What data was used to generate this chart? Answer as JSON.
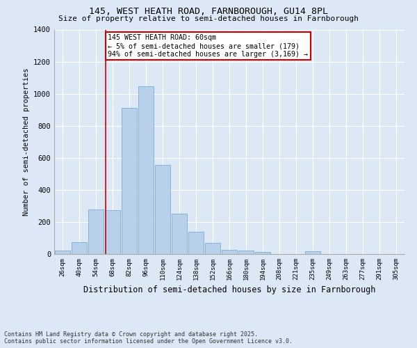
{
  "title1": "145, WEST HEATH ROAD, FARNBOROUGH, GU14 8PL",
  "title2": "Size of property relative to semi-detached houses in Farnborough",
  "xlabel": "Distribution of semi-detached houses by size in Farnborough",
  "ylabel": "Number of semi-detached properties",
  "bar_color": "#b8d0ea",
  "bar_edge_color": "#7aadd4",
  "background_color": "#dce8f5",
  "grid_color": "#ffffff",
  "categories": [
    "26sqm",
    "40sqm",
    "54sqm",
    "68sqm",
    "82sqm",
    "96sqm",
    "110sqm",
    "124sqm",
    "138sqm",
    "152sqm",
    "166sqm",
    "180sqm",
    "194sqm",
    "208sqm",
    "221sqm",
    "235sqm",
    "249sqm",
    "263sqm",
    "277sqm",
    "291sqm",
    "305sqm"
  ],
  "values": [
    20,
    75,
    280,
    275,
    910,
    1045,
    555,
    250,
    140,
    70,
    25,
    20,
    12,
    0,
    0,
    18,
    0,
    0,
    0,
    0,
    0
  ],
  "ylim": [
    0,
    1400
  ],
  "yticks": [
    0,
    200,
    400,
    600,
    800,
    1000,
    1200,
    1400
  ],
  "property_line_x": 2.57,
  "annotation_text": "145 WEST HEATH ROAD: 60sqm\n← 5% of semi-detached houses are smaller (179)\n94% of semi-detached houses are larger (3,169) →",
  "footnote": "Contains HM Land Registry data © Crown copyright and database right 2025.\nContains public sector information licensed under the Open Government Licence v3.0.",
  "annotation_box_color": "#ffffff",
  "annotation_box_edge": "#cc0000",
  "line_color": "#cc0000",
  "figsize": [
    6.0,
    5.0
  ],
  "dpi": 100
}
